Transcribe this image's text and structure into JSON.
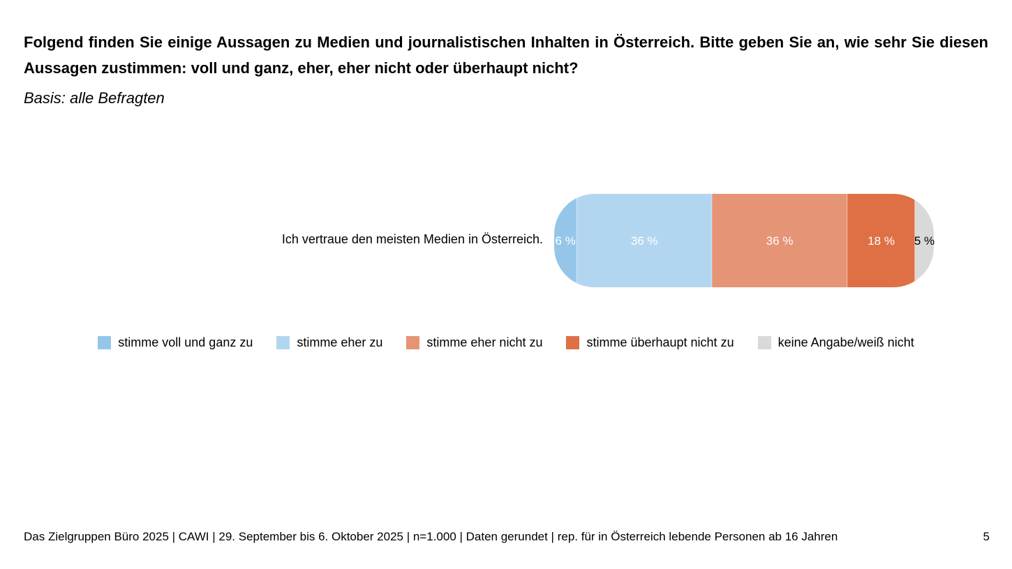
{
  "question": "Folgend finden Sie einige Aussagen zu Medien und journalistischen Inhalten in Österreich. Bitte geben Sie an, wie sehr Sie diesen Aussagen zustimmen: voll und ganz, eher, eher nicht oder überhaupt nicht?",
  "basis": "Basis: alle Befragten",
  "chart_data": {
    "type": "bar",
    "orientation": "horizontal",
    "stacked": true,
    "categories": [
      "Ich vertraue den meisten Medien in Österreich."
    ],
    "series": [
      {
        "name": "stimme voll und ganz zu",
        "values": [
          6
        ],
        "color": "#95c6ea",
        "label_color": "#ffffff"
      },
      {
        "name": "stimme eher zu",
        "values": [
          36
        ],
        "color": "#b2d6f0",
        "label_color": "#ffffff"
      },
      {
        "name": "stimme eher nicht zu",
        "values": [
          36
        ],
        "color": "#e59476",
        "label_color": "#ffffff"
      },
      {
        "name": "stimme überhaupt nicht zu",
        "values": [
          18
        ],
        "color": "#df7046",
        "label_color": "#ffffff"
      },
      {
        "name": "keine Angabe/weiß nicht",
        "values": [
          5
        ],
        "color": "#d9d9d9",
        "label_color": "#000000"
      }
    ],
    "unit_suffix": " %",
    "legend_position": "bottom",
    "grid": false
  },
  "footer": "Das Zielgruppen Büro 2025 | CAWI | 29. September bis 6. Oktober 2025 | n=1.000 | Daten gerundet | rep. für in Österreich lebende Personen ab 16 Jahren",
  "page_number": "5"
}
